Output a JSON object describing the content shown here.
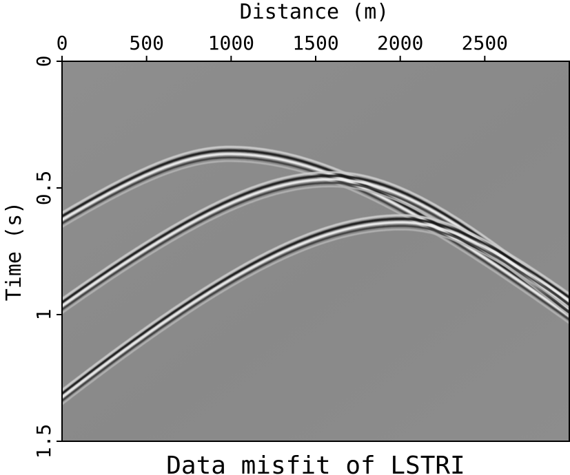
{
  "chart_data": {
    "type": "heatmap",
    "xlabel": "Distance (m)",
    "ylabel": "Time (s)",
    "caption": "Data misfit of LSTRI",
    "x_axis_position": "top",
    "y_axis_inverted": true,
    "xlim": [
      0,
      3000
    ],
    "ylim": [
      0,
      1.5
    ],
    "x_ticks": [
      0,
      500,
      1000,
      1500,
      2000,
      2500
    ],
    "x_tick_labels": [
      "0",
      "500",
      "1000",
      "1500",
      "2000",
      "2500"
    ],
    "y_ticks": [
      0,
      0.5,
      1,
      1.5
    ],
    "y_tick_labels": [
      "0",
      "0.5",
      "1",
      "1.5"
    ],
    "colormap": "grayscale",
    "background_color": "#8b8b8b",
    "grid": false,
    "events": [
      {
        "apex_x": 990,
        "apex_t": 0.36,
        "t_at_x0": 0.62,
        "t_at_xmax": 1.0
      },
      {
        "apex_x": 1590,
        "apex_t": 0.46,
        "t_at_x0": 0.96,
        "t_at_xmax": 0.97
      },
      {
        "apex_x": 2010,
        "apex_t": 0.63,
        "t_at_x0": 1.32,
        "t_at_xmax": 0.94
      }
    ]
  }
}
